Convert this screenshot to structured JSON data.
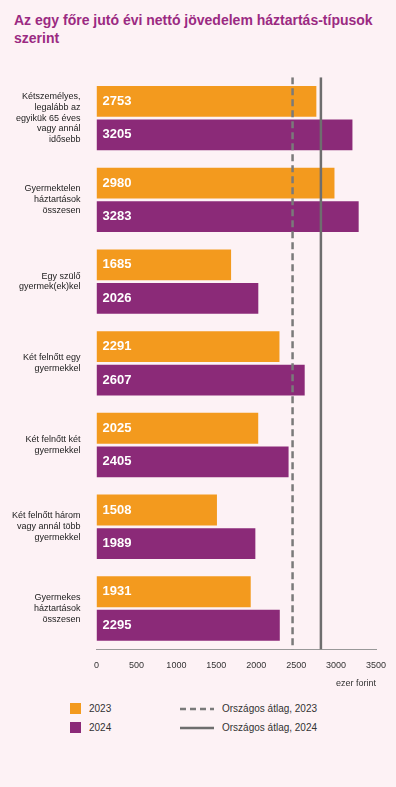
{
  "chart_data": {
    "type": "bar",
    "orientation": "horizontal",
    "title": "Az egy főre jutó évi nettó jövedelem háztartás-típusok szerint",
    "x_label": "ezer forint",
    "categories": [
      "Kétszemélyes, legalább az egyikük 65 éves vagy annál idősebb",
      "Gyermektelen háztartások összesen",
      "Egy szülő gyermek(ek)kel",
      "Két felnőtt egy gyermekkel",
      "Két felnőtt két gyermekkel",
      "Két felnőtt három vagy annál több gyermekkel",
      "Gyermekes háztartások összesen"
    ],
    "series": [
      {
        "name": "2023",
        "color": "#f39a1e",
        "values": [
          2753,
          2980,
          1685,
          2291,
          2025,
          1508,
          1931
        ]
      },
      {
        "name": "2024",
        "color": "#8b2a78",
        "values": [
          3205,
          3283,
          2026,
          2607,
          2405,
          1989,
          2295
        ]
      }
    ],
    "averages": [
      {
        "name": "Országos átlag, 2023",
        "value": 2455,
        "color": "#7a7a7a",
        "line_style": "dashed"
      },
      {
        "name": "Országos átlag, 2024",
        "value": 2810,
        "color": "#6e6e6e",
        "line_style": "solid"
      }
    ],
    "xlim": [
      0,
      3500
    ],
    "xticks": [
      0,
      500,
      1000,
      1500,
      2000,
      2500,
      3000,
      3500
    ],
    "grid": false,
    "data_labels": true,
    "legend": "bottom"
  }
}
